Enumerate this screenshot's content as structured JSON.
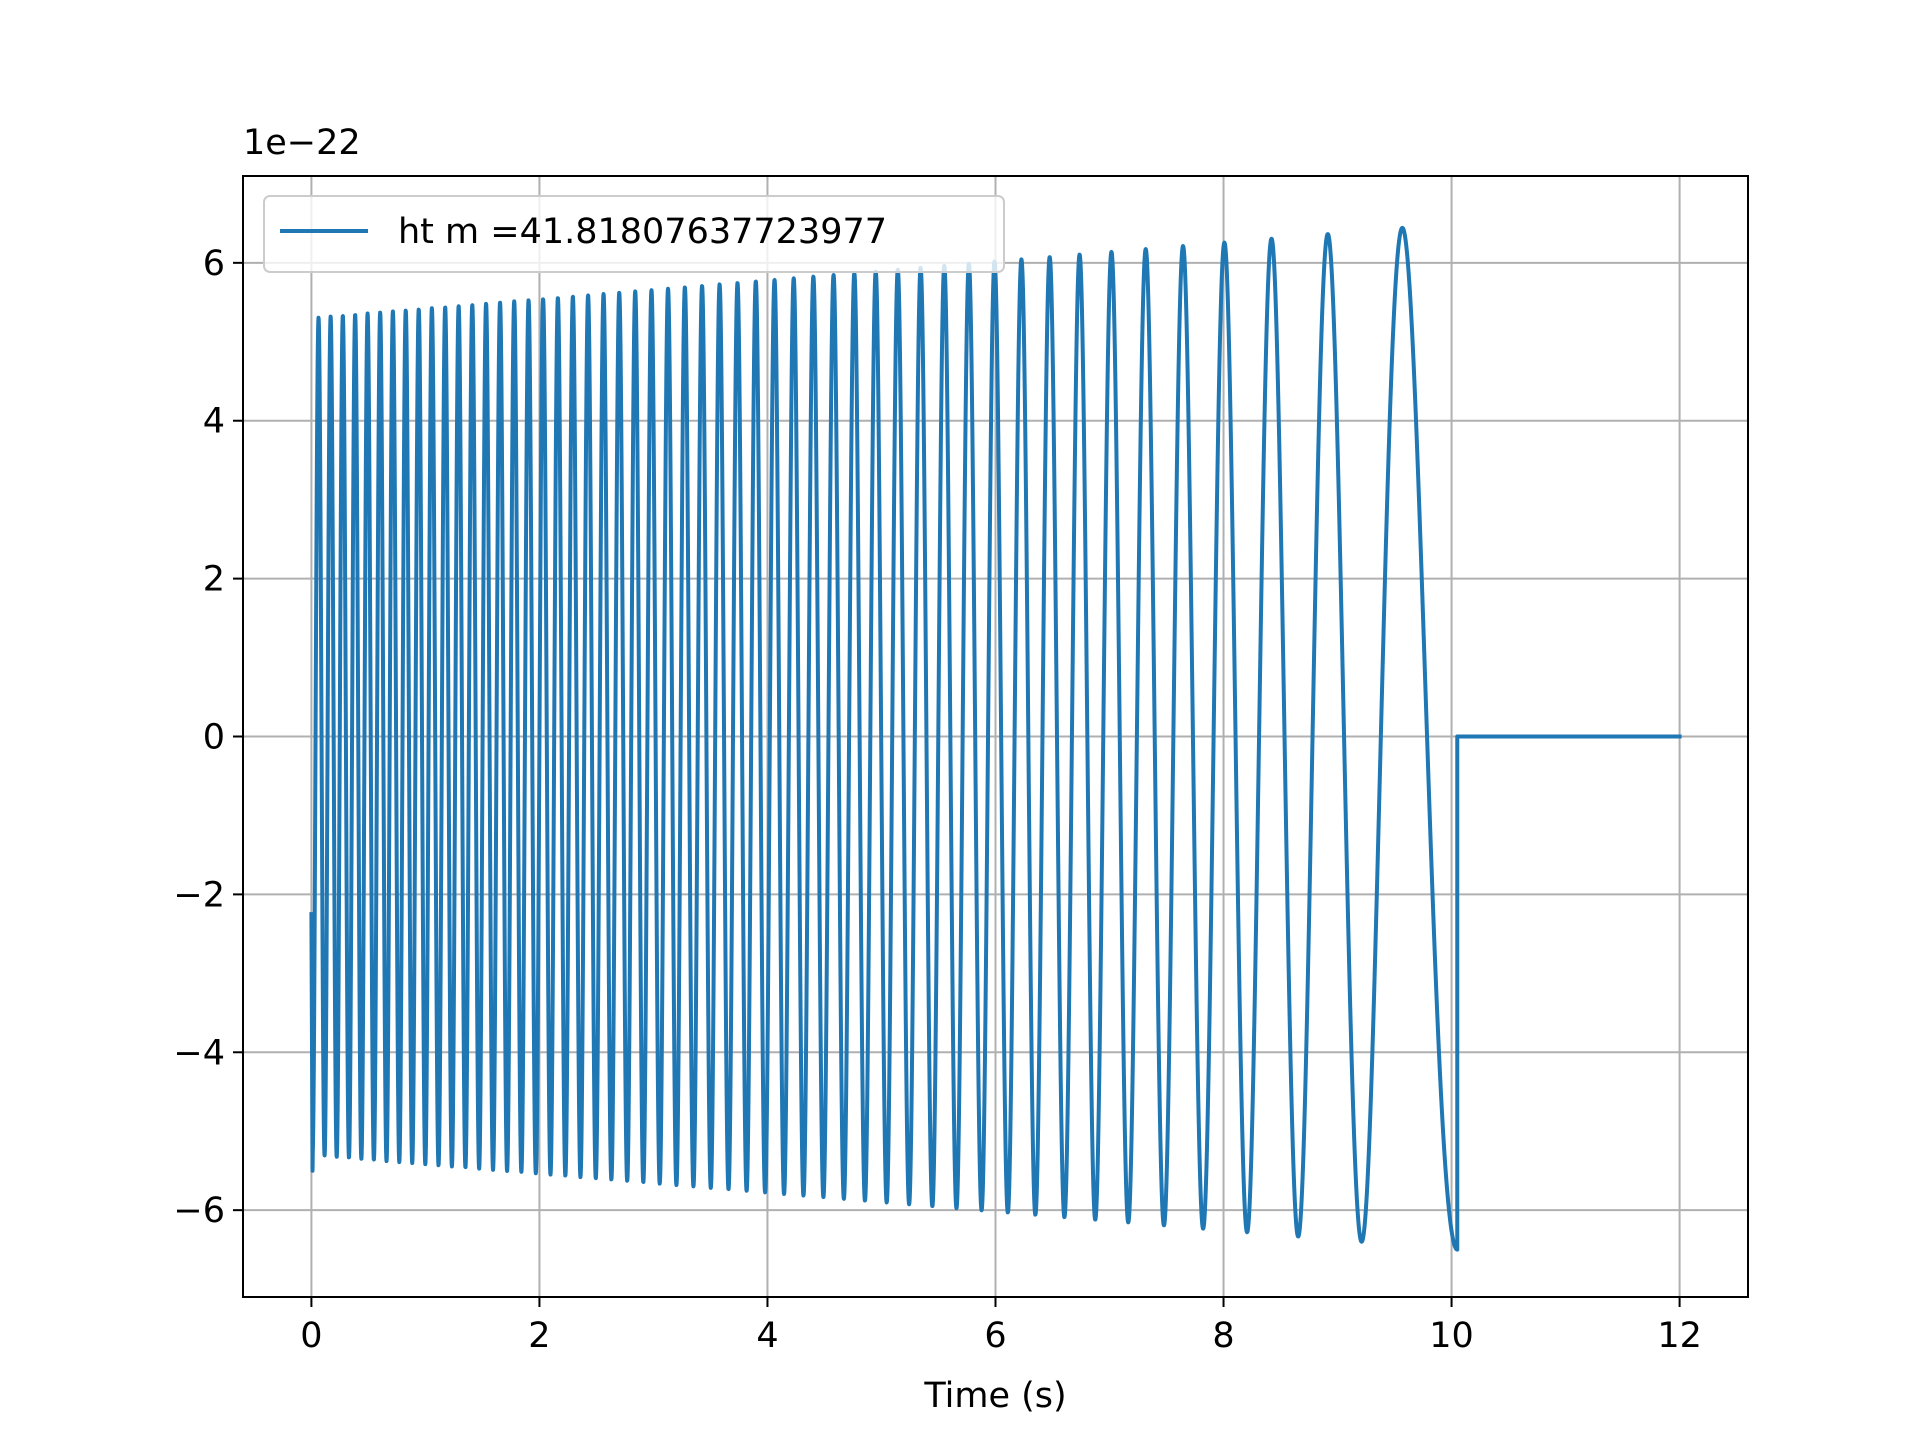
{
  "chart_data": {
    "type": "line",
    "title": "",
    "xlabel": "Time (s)",
    "ylabel": "",
    "y_offset_label": "1e−22",
    "xlim": [
      -0.6,
      12.6
    ],
    "ylim": [
      -7.1,
      7.1
    ],
    "x_ticks": [
      0,
      2,
      4,
      6,
      8,
      10,
      12
    ],
    "x_tick_labels": [
      "0",
      "2",
      "4",
      "6",
      "8",
      "10",
      "12"
    ],
    "y_ticks": [
      -6,
      -4,
      -2,
      0,
      2,
      4,
      6
    ],
    "y_tick_labels": [
      "−6",
      "−4",
      "−2",
      "0",
      "2",
      "4",
      "6"
    ],
    "grid": true,
    "legend_position": "top-left",
    "series": [
      {
        "name": "ht m =41.81807637723977",
        "color": "#1f77b4",
        "start_x": 0.0,
        "start_y": -2.25,
        "first_trough": {
          "x": 0.01,
          "y": -5.5
        },
        "cycles": 52,
        "cycle_end_x": 10.05,
        "start_amplitude": 5.3,
        "end_amplitude": 6.5,
        "final_drop": {
          "x": 10.05,
          "y": -1.15
        },
        "flat_tail": {
          "from_x": 10.05,
          "to_x": 12.0,
          "y": 0
        }
      }
    ]
  }
}
